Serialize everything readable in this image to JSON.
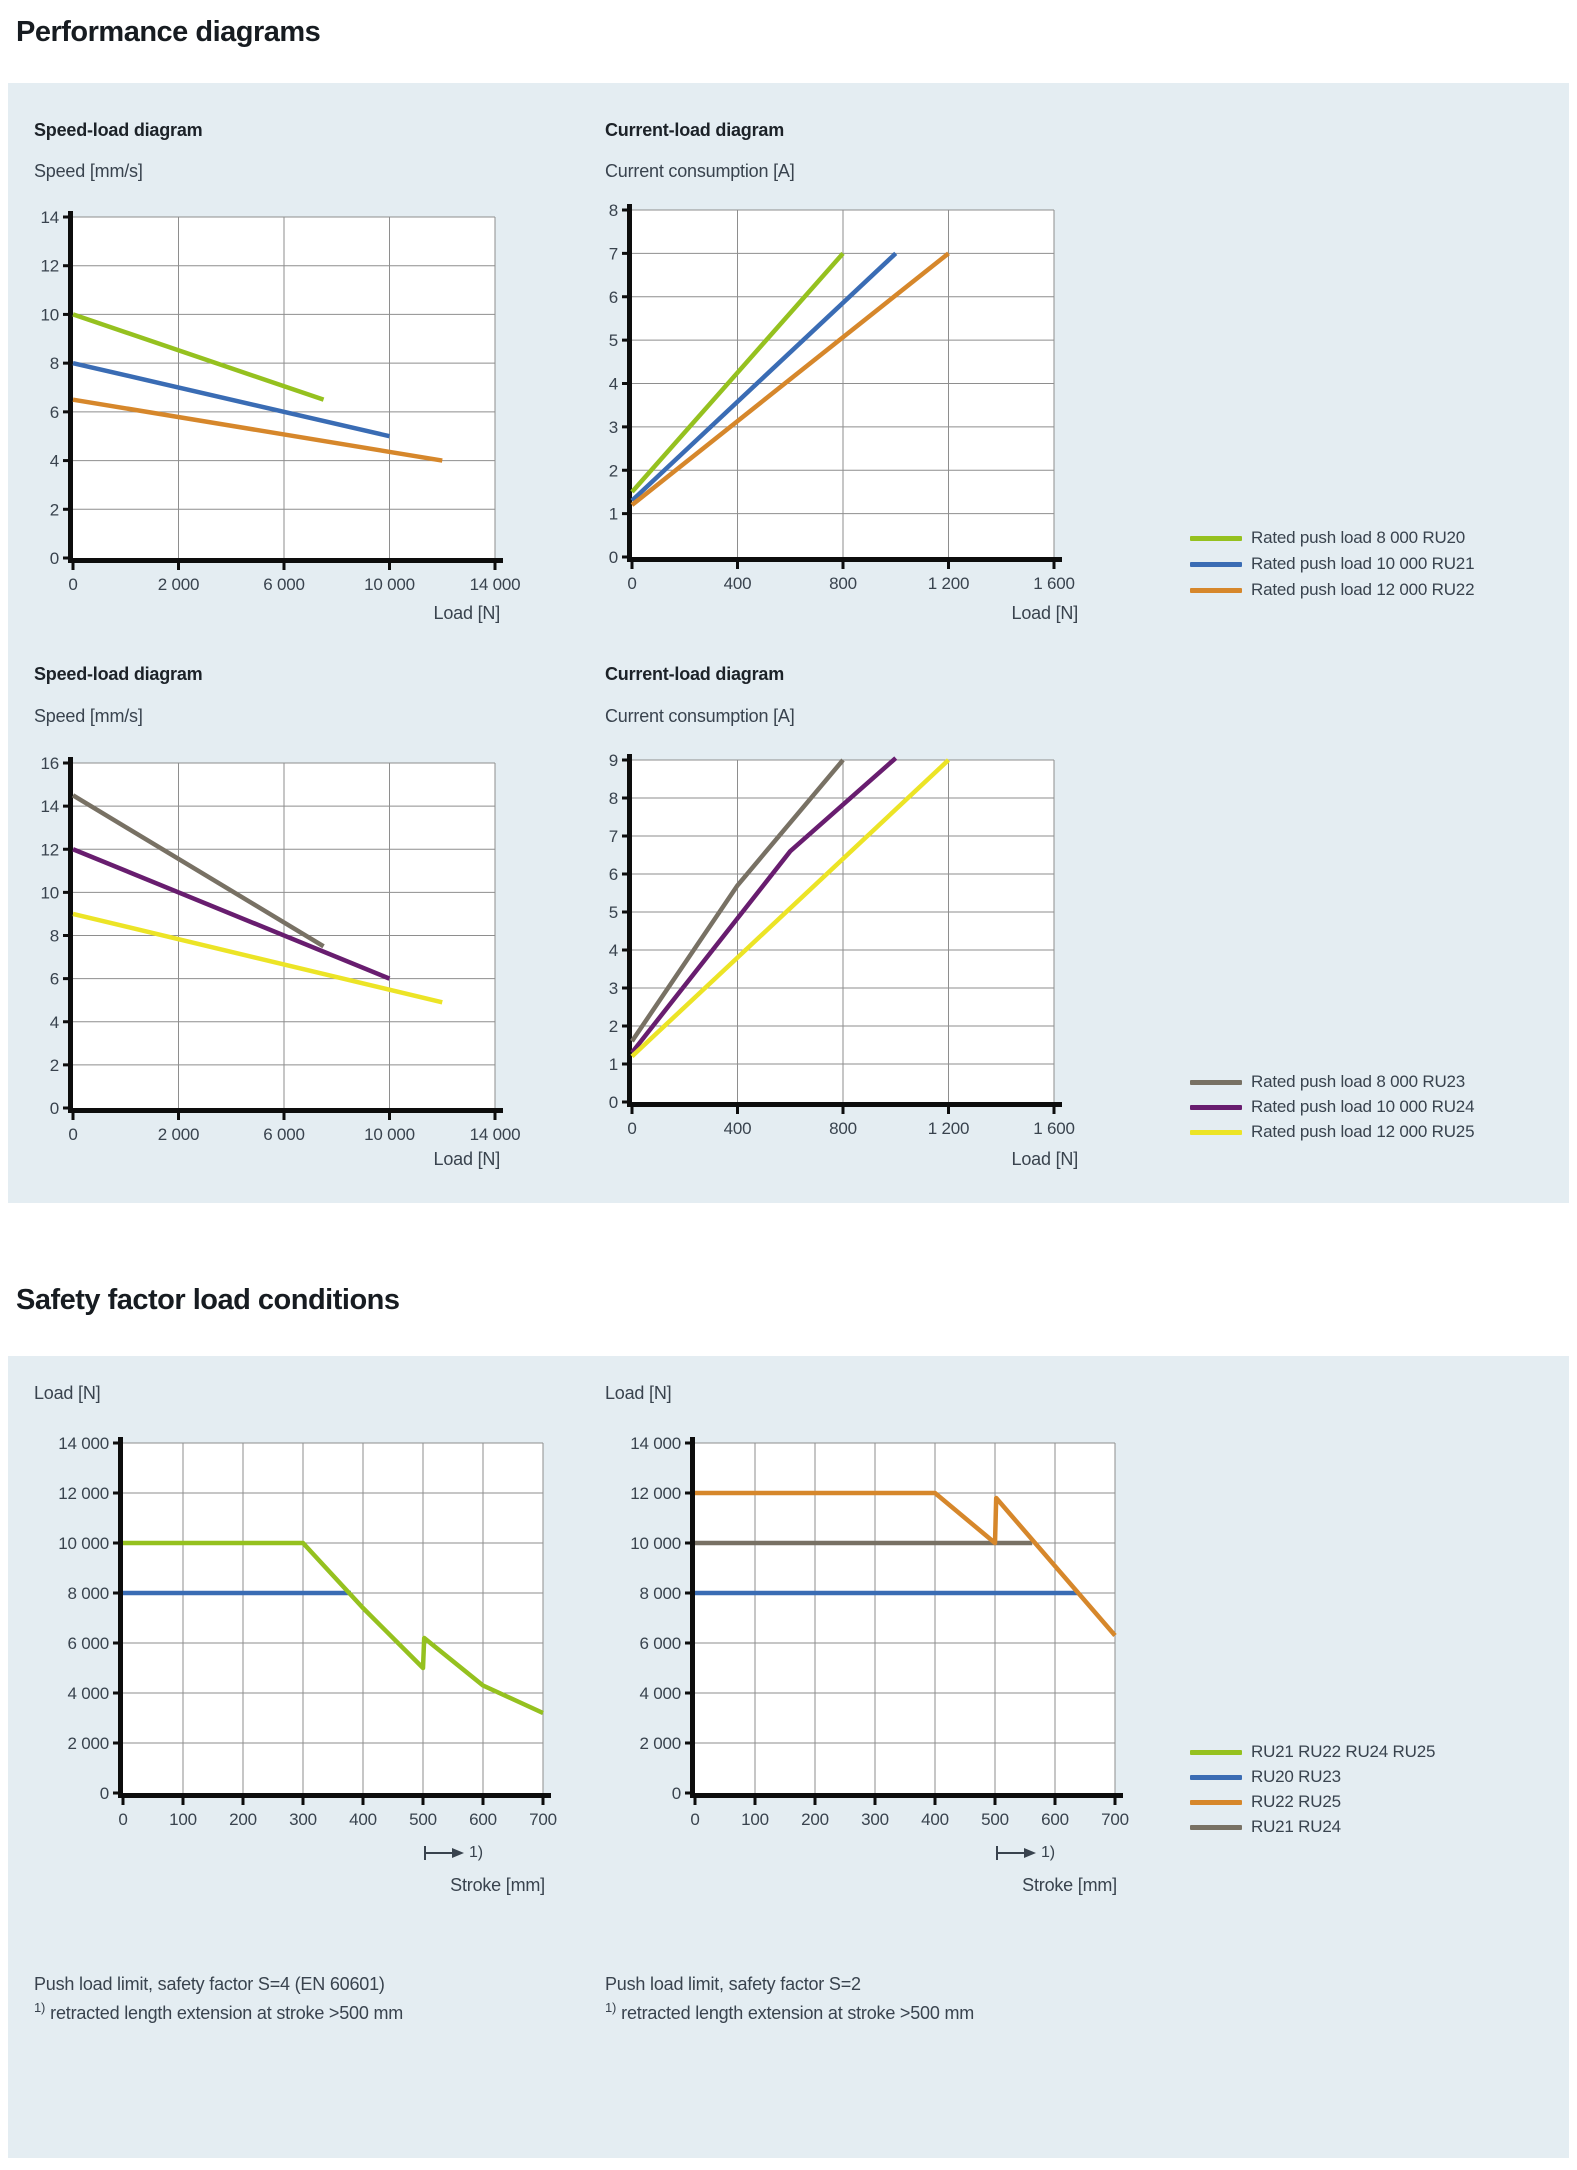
{
  "titles": {
    "performance": "Performance diagrams",
    "safety": "Safety factor load conditions"
  },
  "colors": {
    "green": "#95c11f",
    "blue": "#3a6cb4",
    "orange": "#d6872b",
    "gray": "#787164",
    "purple": "#681d6f",
    "yellow": "#ece426",
    "panel": "#e4edf2",
    "grid": "#8e8e8e",
    "axis": "#0d0d0d",
    "text": "#39434e"
  },
  "chart_data": [
    {
      "id": "speed1",
      "type": "line",
      "heading": "Speed-load diagram",
      "ylabel": "Speed [mm/s]",
      "xlabel": "Load [N]",
      "x_ticks": [
        0,
        2000,
        6000,
        10000,
        14000
      ],
      "x_tick_labels": [
        "0",
        "2 000",
        "6 000",
        "10 000",
        "14 000"
      ],
      "y_max": 14,
      "y_step": 2,
      "y_tick_labels": [
        "0",
        "2",
        "4",
        "6",
        "8",
        "10",
        "12",
        "14"
      ],
      "grid": true,
      "series": [
        {
          "name": "Rated push load 8 000 RU20",
          "color": "green",
          "points": [
            [
              0,
              10
            ],
            [
              7500,
              6.5
            ]
          ]
        },
        {
          "name": "Rated push load 10 000 RU21",
          "color": "blue",
          "points": [
            [
              0,
              8
            ],
            [
              10000,
              5
            ]
          ]
        },
        {
          "name": "Rated push load 12 000 RU22",
          "color": "orange",
          "points": [
            [
              0,
              6.5
            ],
            [
              12000,
              4
            ]
          ]
        }
      ]
    },
    {
      "id": "current1",
      "type": "line",
      "heading": "Current-load diagram",
      "ylabel": "Current consumption [A]",
      "xlabel": "Load [N]",
      "x_ticks": [
        0,
        400,
        800,
        1200,
        1600
      ],
      "x_tick_labels": [
        "0",
        "400",
        "800",
        "1 200",
        "1 600"
      ],
      "y_max": 8,
      "y_step": 1,
      "y_tick_labels": [
        "0",
        "1",
        "2",
        "3",
        "4",
        "5",
        "6",
        "7",
        "8"
      ],
      "grid": true,
      "series": [
        {
          "name": "Rated push load 8 000 RU20",
          "color": "green",
          "points": [
            [
              0,
              1.5
            ],
            [
              800,
              7
            ]
          ]
        },
        {
          "name": "Rated push load 10 000 RU21",
          "color": "blue",
          "points": [
            [
              0,
              1.3
            ],
            [
              1000,
              7
            ]
          ]
        },
        {
          "name": "Rated push load 12 000 RU22",
          "color": "orange",
          "points": [
            [
              0,
              1.2
            ],
            [
              1200,
              7
            ]
          ]
        }
      ]
    },
    {
      "id": "speed2",
      "type": "line",
      "heading": "Speed-load diagram",
      "ylabel": "Speed [mm/s]",
      "xlabel": "Load [N]",
      "x_ticks": [
        0,
        2000,
        6000,
        10000,
        14000
      ],
      "x_tick_labels": [
        "0",
        "2 000",
        "6 000",
        "10 000",
        "14 000"
      ],
      "y_max": 16,
      "y_step": 2,
      "y_tick_labels": [
        "0",
        "2",
        "4",
        "6",
        "8",
        "10",
        "12",
        "14",
        "16"
      ],
      "grid": true,
      "series": [
        {
          "name": "Rated push load 8 000 RU23",
          "color": "gray",
          "points": [
            [
              0,
              14.5
            ],
            [
              7500,
              7.5
            ]
          ]
        },
        {
          "name": "Rated push load 10 000 RU24",
          "color": "purple",
          "points": [
            [
              0,
              12
            ],
            [
              10000,
              6
            ]
          ]
        },
        {
          "name": "Rated push load 12 000 RU25",
          "color": "yellow",
          "points": [
            [
              0,
              9
            ],
            [
              12000,
              4.9
            ]
          ]
        }
      ]
    },
    {
      "id": "current2",
      "type": "line",
      "heading": "Current-load diagram",
      "ylabel": "Current consumption [A]",
      "xlabel": "Load [N]",
      "x_ticks": [
        0,
        400,
        800,
        1200,
        1600
      ],
      "x_tick_labels": [
        "0",
        "400",
        "800",
        "1 200",
        "1 600"
      ],
      "y_max": 9,
      "y_step": 1,
      "y_tick_labels": [
        "0",
        "1",
        "2",
        "3",
        "4",
        "5",
        "6",
        "7",
        "8",
        "9"
      ],
      "grid": true,
      "series": [
        {
          "name": "Rated push load 8 000 RU23",
          "color": "gray",
          "points": [
            [
              0,
              1.6
            ],
            [
              400,
              5.7
            ],
            [
              800,
              9
            ]
          ]
        },
        {
          "name": "Rated push load 10 000 RU24",
          "color": "purple",
          "points": [
            [
              0,
              1.3
            ],
            [
              600,
              6.6
            ],
            [
              1000,
              9.05
            ]
          ]
        },
        {
          "name": "Rated push load 12 000 RU25",
          "color": "yellow",
          "points": [
            [
              0,
              1.2
            ],
            [
              1200,
              9
            ]
          ]
        }
      ]
    },
    {
      "id": "safety1",
      "type": "line",
      "heading": "",
      "ylabel": "Load [N]",
      "xlabel": "Stroke [mm]",
      "x_ticks": [
        0,
        100,
        200,
        300,
        400,
        500,
        600,
        700
      ],
      "x_tick_labels": [
        "0",
        "100",
        "200",
        "300",
        "400",
        "500",
        "600",
        "700"
      ],
      "y_max": 14000,
      "y_step": 2000,
      "y_tick_labels": [
        "0",
        "2 000",
        "4 000",
        "6 000",
        "8 000",
        "10 000",
        "12 000",
        "14 000"
      ],
      "grid": true,
      "series": [
        {
          "name": "RU20 RU23",
          "color": "blue",
          "points": [
            [
              0,
              8000
            ],
            [
              380,
              8000
            ]
          ]
        },
        {
          "name": "RU21 RU22 RU24 RU25",
          "color": "green",
          "points": [
            [
              0,
              10000
            ],
            [
              300,
              10000
            ],
            [
              400,
              7400
            ],
            [
              500,
              5000
            ],
            [
              502,
              6200
            ],
            [
              600,
              4300
            ],
            [
              700,
              3200
            ]
          ]
        }
      ]
    },
    {
      "id": "safety2",
      "type": "line",
      "heading": "",
      "ylabel": "Load [N]",
      "xlabel": "Stroke [mm]",
      "x_ticks": [
        0,
        100,
        200,
        300,
        400,
        500,
        600,
        700
      ],
      "x_tick_labels": [
        "0",
        "100",
        "200",
        "300",
        "400",
        "500",
        "600",
        "700"
      ],
      "y_max": 14000,
      "y_step": 2000,
      "y_tick_labels": [
        "0",
        "2 000",
        "4 000",
        "6 000",
        "8 000",
        "10 000",
        "12 000",
        "14 000"
      ],
      "grid": true,
      "series": [
        {
          "name": "RU21 RU24",
          "color": "gray",
          "points": [
            [
              0,
              10000
            ],
            [
              562,
              10000
            ]
          ]
        },
        {
          "name": "RU20 RU23",
          "color": "blue",
          "points": [
            [
              0,
              8000
            ],
            [
              640,
              8000
            ]
          ]
        },
        {
          "name": "RU22 RU25",
          "color": "orange",
          "points": [
            [
              0,
              12000
            ],
            [
              400,
              12000
            ],
            [
              500,
              10000
            ],
            [
              502,
              11800
            ],
            [
              700,
              6300
            ]
          ]
        }
      ]
    }
  ],
  "legends": [
    {
      "id": "perf1",
      "items": [
        {
          "color": "green",
          "label": "Rated push load 8 000 RU20"
        },
        {
          "color": "blue",
          "label": "Rated push load 10 000 RU21"
        },
        {
          "color": "orange",
          "label": "Rated push load 12 000 RU22"
        }
      ]
    },
    {
      "id": "perf2",
      "items": [
        {
          "color": "gray",
          "label": "Rated push load 8 000 RU23"
        },
        {
          "color": "purple",
          "label": "Rated push load 10 000 RU24"
        },
        {
          "color": "yellow",
          "label": "Rated push load 12 000 RU25"
        }
      ]
    },
    {
      "id": "safety",
      "items": [
        {
          "color": "green",
          "label": "RU21 RU22 RU24 RU25"
        },
        {
          "color": "blue",
          "label": "RU20 RU23"
        },
        {
          "color": "orange",
          "label": "RU22 RU25"
        },
        {
          "color": "gray",
          "label": "RU21 RU24"
        }
      ]
    }
  ],
  "stroke_axis": {
    "marker_label": "1)",
    "title": "Stroke [mm]"
  },
  "footnotes": {
    "left": {
      "line1": "Push load limit, safety factor S=4 (EN 60601)",
      "sup": "1)",
      "line2": "retracted length extension at stroke >500 mm"
    },
    "right": {
      "line1": "Push load limit, safety factor S=2",
      "sup": "1)",
      "line2": "retracted length extension at stroke >500 mm"
    }
  }
}
